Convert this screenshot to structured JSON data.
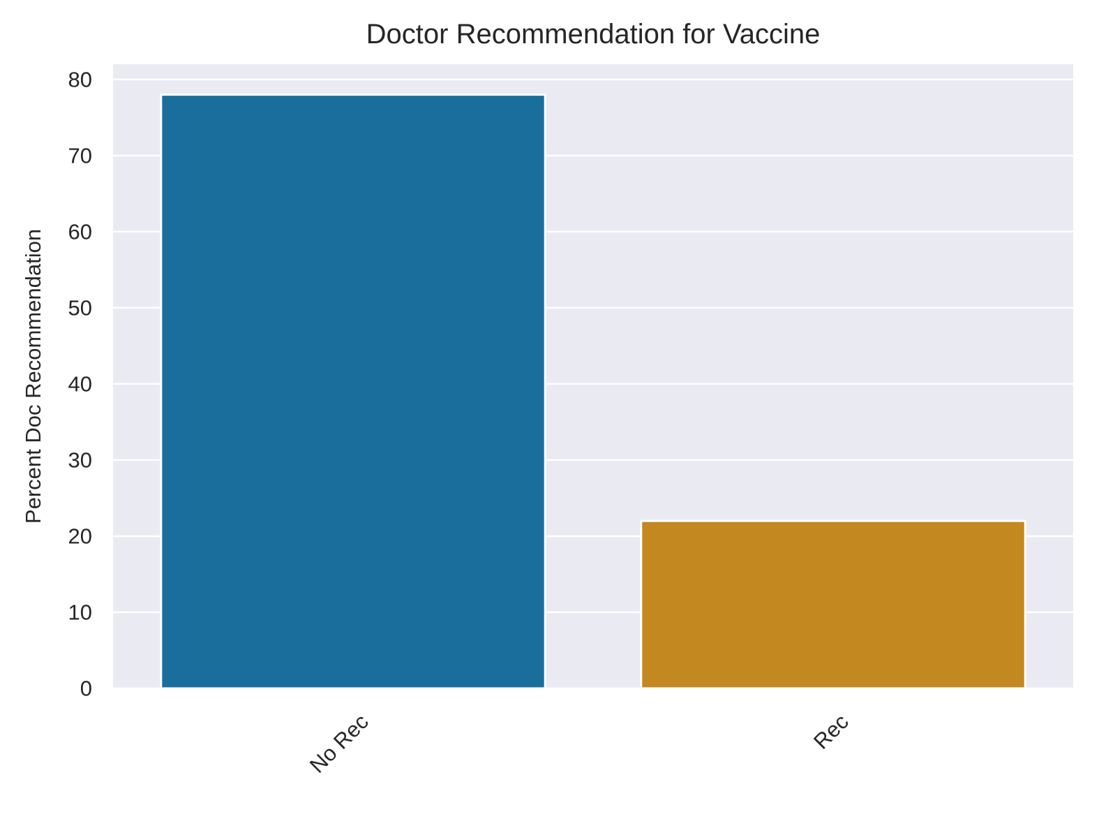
{
  "chart_data": {
    "type": "bar",
    "title": "Doctor Recommendation for Vaccine",
    "xlabel": "",
    "ylabel": "Percent Doc Recommendation",
    "categories": [
      "No Rec",
      "Rec"
    ],
    "values": [
      78,
      22
    ],
    "ylim": [
      0,
      82
    ],
    "yticks": [
      0,
      10,
      20,
      30,
      40,
      50,
      60,
      70,
      80
    ],
    "grid": true,
    "legend": "none",
    "xtick_rotation_deg": 45,
    "colors": {
      "bars": [
        "#1a6e9b",
        "#c38820"
      ],
      "plot_background": "#eaeaf2",
      "grid": "#ffffff",
      "text": "#262626"
    }
  }
}
